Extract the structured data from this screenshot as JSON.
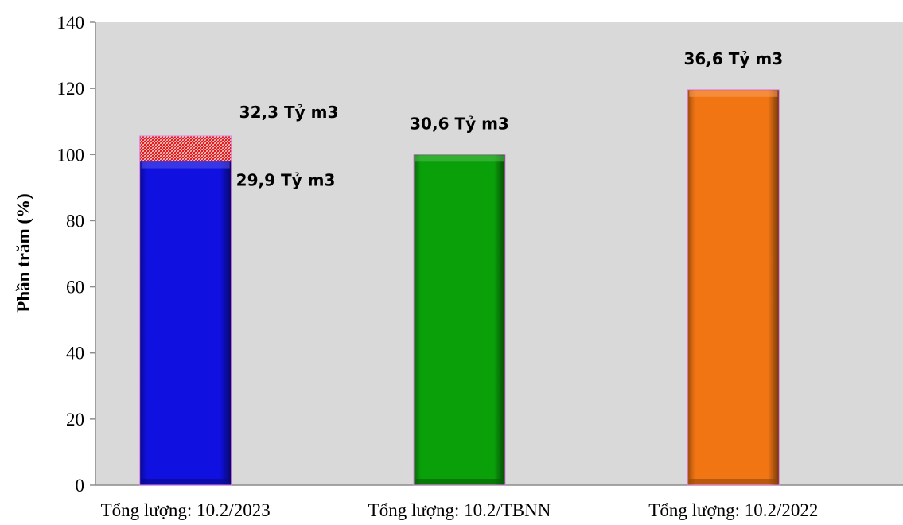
{
  "chart_data": {
    "type": "bar",
    "title": "",
    "xlabel": "",
    "ylabel": "Phần trăm (%)",
    "ylim": [
      0,
      140
    ],
    "yticks": [
      0,
      20,
      40,
      60,
      80,
      100,
      120,
      140
    ],
    "grid": false,
    "legend": "none",
    "plot_background": "#d9d9d9",
    "categories": [
      "Tổng lượng: 10.2/2023",
      "Tổng lượng: 10.2/TBNN",
      "Tổng lượng: 10.2/2022"
    ],
    "bars": [
      {
        "category": "Tổng lượng: 10.2/2023",
        "value": 98,
        "color": "#1010e0",
        "label": "29,9 Tỷ m3",
        "stacked": {
          "value": 7.6,
          "total": 105.6,
          "pattern": "red-hatch",
          "label": "32,3 Tỷ m3"
        }
      },
      {
        "category": "Tổng lượng: 10.2/TBNN",
        "value": 100,
        "color": "#0aa00a",
        "label": "30,6 Tỷ m3"
      },
      {
        "category": "Tổng lượng: 10.2/2022",
        "value": 119.6,
        "color": "#f27514",
        "label": "36,6 Tỷ m3"
      }
    ]
  }
}
